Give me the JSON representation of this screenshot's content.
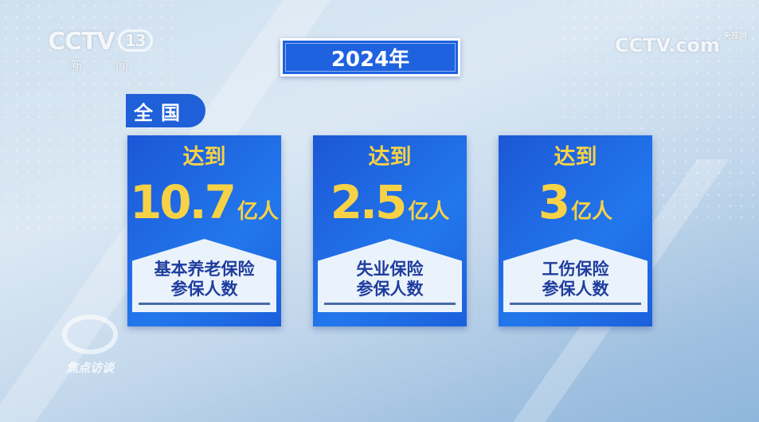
{
  "branding": {
    "channel": "CCTV",
    "channel_number": "13",
    "channel_name": "新 闻",
    "site_logo": "CCTV.com",
    "site_name": "央视网",
    "program": "焦点访谈"
  },
  "header": {
    "year": "2024年",
    "region": "全国"
  },
  "colors": {
    "card_blue": "#1f62e0",
    "highlight_yellow": "#f7d246",
    "label_navy": "#1f3d9e"
  },
  "cards": [
    {
      "prefix": "达到",
      "value": "10.7",
      "unit": "亿人",
      "label_line1": "基本养老保险",
      "label_line2": "参保人数"
    },
    {
      "prefix": "达到",
      "value": "2.5",
      "unit": "亿人",
      "label_line1": "失业保险",
      "label_line2": "参保人数"
    },
    {
      "prefix": "达到",
      "value": "3",
      "unit": "亿人",
      "label_line1": "工伤保险",
      "label_line2": "参保人数"
    }
  ]
}
